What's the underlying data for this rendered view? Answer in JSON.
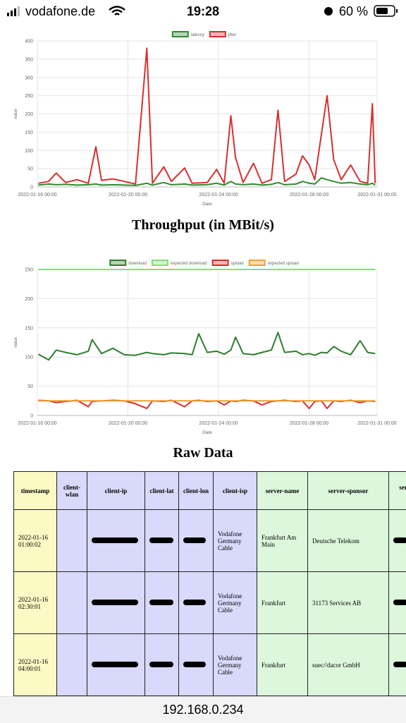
{
  "status_bar": {
    "carrier": "vodafone.de",
    "time": "19:28",
    "battery": "60 %"
  },
  "chart_data": [
    {
      "type": "line",
      "y_label": "value",
      "x_label": "Date",
      "x": [
        "2022-01-16 01:00",
        "2022-01-16 12:00",
        "2022-01-16 20:00",
        "2022-01-17 06:00",
        "2022-01-17 18:00",
        "2022-01-18 06:00",
        "2022-01-18 14:00",
        "2022-01-18 20:00",
        "2022-01-19 08:00",
        "2022-01-19 20:00",
        "2022-01-20 08:00",
        "2022-01-20 20:00",
        "2022-01-21 02:00",
        "2022-01-21 14:00",
        "2022-01-21 22:00",
        "2022-01-22 12:00",
        "2022-01-22 20:00",
        "2022-01-23 12:00",
        "2022-01-23 22:00",
        "2022-01-24 06:00",
        "2022-01-24 13:00",
        "2022-01-24 18:00",
        "2022-01-25 02:00",
        "2022-01-25 13:00",
        "2022-01-25 22:00",
        "2022-01-26 08:00",
        "2022-01-26 15:00",
        "2022-01-26 22:00",
        "2022-01-27 10:00",
        "2022-01-27 17:00",
        "2022-01-28 00:00",
        "2022-01-28 06:00",
        "2022-01-28 13:00",
        "2022-01-28 19:00",
        "2022-01-29 02:00",
        "2022-01-29 10:00",
        "2022-01-29 20:00",
        "2022-01-30 06:00",
        "2022-01-30 14:00",
        "2022-01-30 19:00",
        "2022-01-30 22:00"
      ],
      "xlim": [
        "2022-01-16 00:00",
        "2022-01-31 00:00"
      ],
      "xticks": [
        "2022-01-16 00:00",
        "2022-01-20 00:00",
        "2022-01-24 00:00",
        "2022-01-28 00:00",
        "2022-01-31 00:00"
      ],
      "ylim": [
        0,
        400
      ],
      "yticks": [
        0,
        50,
        100,
        150,
        200,
        250,
        300,
        350,
        400
      ],
      "grid": true,
      "series": [
        {
          "name": "latency",
          "color": "#2e8b2e",
          "values": [
            5,
            8,
            6,
            7,
            5,
            6,
            8,
            5,
            6,
            5,
            4,
            10,
            5,
            12,
            6,
            8,
            5,
            6,
            10,
            5,
            15,
            8,
            6,
            8,
            5,
            7,
            12,
            6,
            8,
            15,
            10,
            8,
            25,
            20,
            15,
            10,
            12,
            8,
            6,
            10,
            5
          ]
        },
        {
          "name": "jitter",
          "color": "#d63030",
          "values": [
            10,
            15,
            38,
            12,
            20,
            10,
            110,
            18,
            22,
            15,
            8,
            380,
            10,
            55,
            15,
            52,
            10,
            12,
            48,
            10,
            195,
            80,
            12,
            65,
            10,
            20,
            210,
            15,
            35,
            85,
            60,
            20,
            145,
            250,
            75,
            20,
            60,
            15,
            10,
            228,
            10
          ]
        }
      ]
    },
    {
      "type": "line",
      "title": "Throughput (in MBit/s)",
      "y_label": "value",
      "x_label": "Date",
      "x": [
        "2022-01-16 01:00",
        "2022-01-16 12:00",
        "2022-01-16 20:00",
        "2022-01-17 06:00",
        "2022-01-17 18:00",
        "2022-01-18 06:00",
        "2022-01-18 10:00",
        "2022-01-18 20:00",
        "2022-01-19 08:00",
        "2022-01-19 20:00",
        "2022-01-20 08:00",
        "2022-01-20 20:00",
        "2022-01-21 02:00",
        "2022-01-21 14:00",
        "2022-01-21 22:00",
        "2022-01-22 12:00",
        "2022-01-22 20:00",
        "2022-01-23 03:00",
        "2022-01-23 12:00",
        "2022-01-23 22:00",
        "2022-01-24 06:00",
        "2022-01-24 13:00",
        "2022-01-24 18:00",
        "2022-01-25 02:00",
        "2022-01-25 13:00",
        "2022-01-25 22:00",
        "2022-01-26 08:00",
        "2022-01-26 15:00",
        "2022-01-26 22:00",
        "2022-01-27 10:00",
        "2022-01-27 17:00",
        "2022-01-28 00:00",
        "2022-01-28 06:00",
        "2022-01-28 13:00",
        "2022-01-28 19:00",
        "2022-01-29 02:00",
        "2022-01-29 10:00",
        "2022-01-29 20:00",
        "2022-01-30 06:00",
        "2022-01-30 14:00",
        "2022-01-30 22:00"
      ],
      "xlim": [
        "2022-01-16 00:00",
        "2022-01-31 00:00"
      ],
      "xticks": [
        "2022-01-16 00:00",
        "2022-01-20 00:00",
        "2022-01-24 00:00",
        "2022-01-28 00:00",
        "2022-01-31 00:00"
      ],
      "ylim": [
        0,
        250
      ],
      "yticks": [
        0,
        50,
        100,
        150,
        200,
        250
      ],
      "grid": true,
      "series": [
        {
          "name": "download",
          "color": "#2e7d2e",
          "values": [
            105,
            95,
            112,
            108,
            104,
            110,
            130,
            106,
            115,
            104,
            103,
            108,
            106,
            104,
            107,
            106,
            104,
            140,
            108,
            110,
            105,
            112,
            134,
            106,
            104,
            108,
            112,
            142,
            108,
            110,
            104,
            106,
            103,
            108,
            107,
            118,
            110,
            104,
            128,
            108,
            106
          ]
        },
        {
          "name": "expected download",
          "color": "#7de07d",
          "values": [
            250,
            250,
            250,
            250,
            250,
            250,
            250,
            250,
            250,
            250,
            250,
            250,
            250,
            250,
            250,
            250,
            250,
            250,
            250,
            250,
            250,
            250,
            250,
            250,
            250,
            250,
            250,
            250,
            250,
            250,
            250,
            250,
            250,
            250,
            250,
            250,
            250,
            250,
            250,
            250,
            250
          ]
        },
        {
          "name": "upload",
          "color": "#d63030",
          "values": [
            26,
            25,
            22,
            24,
            26,
            15,
            24,
            25,
            26,
            25,
            20,
            12,
            25,
            24,
            26,
            15,
            25,
            26,
            24,
            25,
            18,
            25,
            24,
            26,
            25,
            18,
            24,
            25,
            26,
            24,
            25,
            12,
            24,
            25,
            12,
            25,
            24,
            26,
            22,
            25,
            24
          ]
        },
        {
          "name": "expected upload",
          "color": "#f0a030",
          "values": [
            25,
            25,
            25,
            25,
            25,
            25,
            25,
            25,
            25,
            25,
            25,
            25,
            25,
            25,
            25,
            25,
            25,
            25,
            25,
            25,
            25,
            25,
            25,
            25,
            25,
            25,
            25,
            25,
            25,
            25,
            25,
            25,
            25,
            25,
            25,
            25,
            25,
            25,
            25,
            25,
            25
          ]
        }
      ]
    }
  ],
  "raw_heading": "Raw Data",
  "table": {
    "columns": [
      "timestamp",
      "client-wlan",
      "client-ip",
      "client-lat",
      "client-lon",
      "client-isp",
      "server-name",
      "server-sponsor",
      "server-distance (km)"
    ],
    "rows": [
      [
        "2022-01-16 01:00:02",
        null,
        null,
        null,
        null,
        "Vodafone Germany Cable",
        "Frankfurt Am Main",
        "Deutsche Telekom",
        null
      ],
      [
        "2022-01-16 02:30:01",
        null,
        null,
        null,
        null,
        "Vodafone Germany Cable",
        "Frankfurt",
        "31173 Services AB",
        null
      ],
      [
        "2022-01-16 04:00:01",
        null,
        null,
        null,
        null,
        "Vodafone Germany Cable",
        "Frankfurt",
        "suec//dacor GmbH",
        null
      ]
    ]
  },
  "url": "192.168.0.234"
}
